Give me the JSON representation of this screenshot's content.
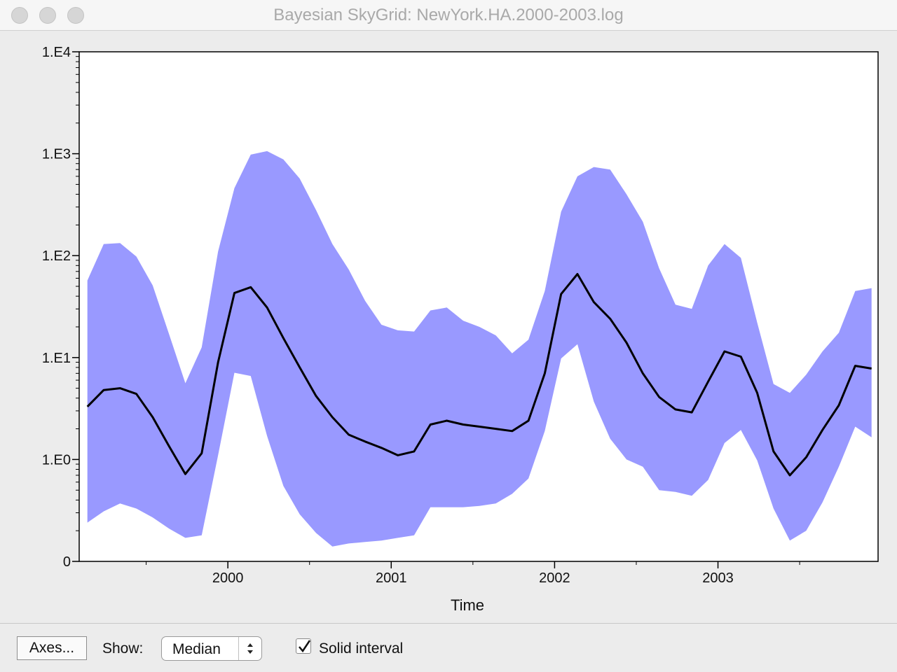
{
  "window": {
    "title": "Bayesian SkyGrid: NewYork.HA.2000-2003.log"
  },
  "toolbar": {
    "axes_button": "Axes...",
    "show_label": "Show:",
    "show_selected": "Median",
    "solid_interval_label": "Solid interval",
    "solid_interval_checked": true
  },
  "chart_data": {
    "type": "area",
    "xlabel": "Time",
    "ylabel": "",
    "x_ticks": [
      "2000",
      "2001",
      "2002",
      "2003"
    ],
    "y_ticks": [
      "0",
      "1.E0",
      "1.E1",
      "1.E2",
      "1.E3",
      "1.E4"
    ],
    "y_scale": "log",
    "xlim": [
      1999.09,
      2003.98
    ],
    "ylim_log10": [
      -1,
      4
    ],
    "grid": false,
    "colors": {
      "band": "#9999ff",
      "median": "#000000"
    },
    "x": [
      1999.14,
      1999.24,
      1999.34,
      1999.44,
      1999.54,
      1999.64,
      1999.74,
      1999.84,
      1999.94,
      2000.04,
      2000.14,
      2000.24,
      2000.34,
      2000.44,
      2000.54,
      2000.64,
      2000.74,
      2000.84,
      2000.94,
      2001.04,
      2001.14,
      2001.24,
      2001.34,
      2001.44,
      2001.54,
      2001.64,
      2001.74,
      2001.84,
      2001.94,
      2002.04,
      2002.14,
      2002.24,
      2002.34,
      2002.44,
      2002.54,
      2002.64,
      2002.74,
      2002.84,
      2002.94,
      2003.04,
      2003.14,
      2003.24,
      2003.34,
      2003.44,
      2003.54,
      2003.64,
      2003.74,
      2003.84,
      2003.94
    ],
    "series": [
      {
        "role": "upper",
        "values": [
          57,
          130,
          133,
          98,
          51,
          17,
          5.6,
          12.6,
          110,
          460,
          980,
          1060,
          880,
          570,
          280,
          130,
          73,
          36,
          21,
          18.5,
          18,
          29,
          31,
          23,
          20,
          16.5,
          11,
          15,
          45,
          270,
          600,
          740,
          700,
          400,
          215,
          75,
          33,
          30,
          80,
          130,
          95,
          22,
          5.5,
          4.5,
          6.8,
          11.5,
          17.5,
          45,
          48
        ]
      },
      {
        "role": "median",
        "values": [
          3.3,
          4.8,
          5.0,
          4.4,
          2.6,
          1.35,
          0.72,
          1.15,
          9,
          43,
          49,
          31,
          15.5,
          8,
          4.2,
          2.6,
          1.75,
          1.5,
          1.3,
          1.1,
          1.2,
          2.2,
          2.4,
          2.2,
          2.1,
          2.0,
          1.9,
          2.4,
          7,
          42,
          66,
          35,
          24,
          14,
          7,
          4.1,
          3.1,
          2.9,
          5.8,
          11.5,
          10.2,
          4.5,
          1.2,
          0.7,
          1.05,
          1.95,
          3.4,
          8.3,
          7.8
        ]
      },
      {
        "role": "lower",
        "values": [
          0.24,
          0.31,
          0.37,
          0.33,
          0.27,
          0.21,
          0.17,
          0.18,
          1.1,
          7.1,
          6.6,
          1.7,
          0.55,
          0.29,
          0.19,
          0.14,
          0.15,
          0.155,
          0.16,
          0.17,
          0.18,
          0.34,
          0.34,
          0.34,
          0.35,
          0.37,
          0.46,
          0.65,
          1.9,
          9.8,
          13.5,
          3.7,
          1.6,
          1.0,
          0.85,
          0.5,
          0.48,
          0.44,
          0.63,
          1.45,
          1.95,
          0.98,
          0.33,
          0.16,
          0.2,
          0.38,
          0.85,
          2.1,
          1.65
        ]
      }
    ]
  }
}
